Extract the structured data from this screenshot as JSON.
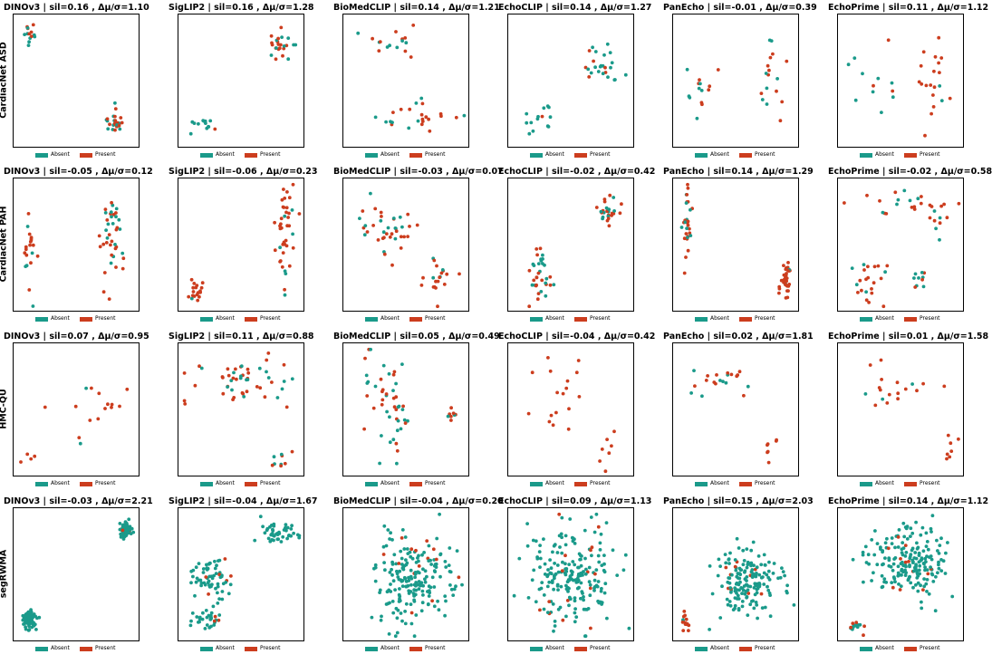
{
  "colors": {
    "absent": "#1a9a8a",
    "present": "#cc3d1e"
  },
  "legend": {
    "absent_label": "Absent",
    "present_label": "Present"
  },
  "models": [
    "DINOv3",
    "SigLIP2",
    "BioMedCLIP",
    "EchoCLIP",
    "PanEcho",
    "EchoPrime"
  ],
  "datasets": [
    "CardiacNet ASD",
    "CardiacNet PAH",
    "HMC-QU",
    "segRWMA"
  ],
  "chart_data": [
    {
      "type": "scatter",
      "row": 0,
      "col": 0,
      "title": "DINOv3 | sil=0.16 , Δμ/σ=1.10",
      "ylabel": "CardiacNet ASD",
      "legend": "bottom",
      "clusters": [
        {
          "cx": 0.11,
          "cy": 0.85,
          "sx": 0.04,
          "sy": 0.06,
          "n": 14,
          "p": 0.3
        },
        {
          "cx": 0.8,
          "cy": 0.18,
          "sx": 0.06,
          "sy": 0.06,
          "n": 26,
          "p": 0.6
        }
      ]
    },
    {
      "type": "scatter",
      "row": 0,
      "col": 1,
      "title": "SigLIP2 | sil=0.16 , Δμ/σ=1.28",
      "legend": "bottom",
      "clusters": [
        {
          "cx": 0.83,
          "cy": 0.78,
          "sx": 0.06,
          "sy": 0.07,
          "n": 24,
          "p": 0.55
        },
        {
          "cx": 0.16,
          "cy": 0.15,
          "sx": 0.06,
          "sy": 0.05,
          "n": 13,
          "p": 0.1
        }
      ]
    },
    {
      "type": "scatter",
      "row": 0,
      "col": 2,
      "title": "BioMedCLIP | sil=0.14 , Δμ/σ=1.21",
      "legend": "bottom",
      "clusters": [
        {
          "cx": 0.35,
          "cy": 0.82,
          "sx": 0.15,
          "sy": 0.08,
          "n": 16,
          "p": 0.45
        },
        {
          "cx": 0.6,
          "cy": 0.22,
          "sx": 0.2,
          "sy": 0.1,
          "n": 24,
          "p": 0.6
        }
      ]
    },
    {
      "type": "scatter",
      "row": 0,
      "col": 3,
      "title": "EchoCLIP | sil=0.14 , Δμ/σ=1.27",
      "legend": "bottom",
      "clusters": [
        {
          "cx": 0.75,
          "cy": 0.63,
          "sx": 0.12,
          "sy": 0.12,
          "n": 25,
          "p": 0.45
        },
        {
          "cx": 0.22,
          "cy": 0.22,
          "sx": 0.1,
          "sy": 0.1,
          "n": 14,
          "p": 0.15
        }
      ]
    },
    {
      "type": "scatter",
      "row": 0,
      "col": 4,
      "title": "PanEcho | sil=-0.01 , Δμ/σ=0.39",
      "legend": "bottom",
      "clusters": [
        {
          "cx": 0.2,
          "cy": 0.45,
          "sx": 0.09,
          "sy": 0.15,
          "n": 14,
          "p": 0.45
        },
        {
          "cx": 0.78,
          "cy": 0.5,
          "sx": 0.07,
          "sy": 0.2,
          "n": 17,
          "p": 0.6
        }
      ]
    },
    {
      "type": "scatter",
      "row": 0,
      "col": 5,
      "title": "EchoPrime | sil=0.11 , Δμ/σ=1.12",
      "legend": "bottom",
      "clusters": [
        {
          "cx": 0.25,
          "cy": 0.45,
          "sx": 0.15,
          "sy": 0.2,
          "n": 12,
          "p": 0.2
        },
        {
          "cx": 0.78,
          "cy": 0.55,
          "sx": 0.1,
          "sy": 0.25,
          "n": 20,
          "p": 0.75
        }
      ]
    },
    {
      "type": "scatter",
      "row": 1,
      "col": 0,
      "title": "DINOv3 | sil=-0.05 , Δμ/σ=0.12",
      "ylabel": "CardiacNet PAH",
      "legend": "bottom",
      "clusters": [
        {
          "cx": 0.1,
          "cy": 0.52,
          "sx": 0.03,
          "sy": 0.17,
          "n": 20,
          "p": 0.85
        },
        {
          "cx": 0.78,
          "cy": 0.55,
          "sx": 0.05,
          "sy": 0.26,
          "n": 40,
          "p": 0.7
        }
      ]
    },
    {
      "type": "scatter",
      "row": 1,
      "col": 1,
      "title": "SigLIP2 | sil=-0.06 , Δμ/σ=0.23",
      "legend": "bottom",
      "clusters": [
        {
          "cx": 0.12,
          "cy": 0.15,
          "sx": 0.04,
          "sy": 0.06,
          "n": 18,
          "p": 0.85
        },
        {
          "cx": 0.85,
          "cy": 0.58,
          "sx": 0.06,
          "sy": 0.22,
          "n": 42,
          "p": 0.75
        }
      ]
    },
    {
      "type": "scatter",
      "row": 1,
      "col": 2,
      "title": "BioMedCLIP | sil=-0.03 , Δμ/σ=0.07",
      "legend": "bottom",
      "clusters": [
        {
          "cx": 0.3,
          "cy": 0.62,
          "sx": 0.14,
          "sy": 0.16,
          "n": 38,
          "p": 0.65
        },
        {
          "cx": 0.78,
          "cy": 0.26,
          "sx": 0.08,
          "sy": 0.1,
          "n": 20,
          "p": 0.7
        }
      ]
    },
    {
      "type": "scatter",
      "row": 1,
      "col": 3,
      "title": "EchoCLIP | sil=-0.02 , Δμ/σ=0.42",
      "legend": "bottom",
      "clusters": [
        {
          "cx": 0.81,
          "cy": 0.78,
          "sx": 0.06,
          "sy": 0.07,
          "n": 26,
          "p": 0.6
        },
        {
          "cx": 0.23,
          "cy": 0.27,
          "sx": 0.09,
          "sy": 0.14,
          "n": 34,
          "p": 0.7
        }
      ]
    },
    {
      "type": "scatter",
      "row": 1,
      "col": 4,
      "title": "PanEcho | sil=0.14 , Δμ/σ=1.29",
      "legend": "bottom",
      "clusters": [
        {
          "cx": 0.09,
          "cy": 0.67,
          "sx": 0.03,
          "sy": 0.19,
          "n": 30,
          "p": 0.7
        },
        {
          "cx": 0.9,
          "cy": 0.18,
          "sx": 0.03,
          "sy": 0.11,
          "n": 34,
          "p": 0.85
        }
      ]
    },
    {
      "type": "scatter",
      "row": 1,
      "col": 5,
      "title": "EchoPrime | sil=-0.02 , Δμ/σ=0.58",
      "legend": "bottom",
      "clusters": [
        {
          "cx": 0.5,
          "cy": 0.85,
          "sx": 0.25,
          "sy": 0.06,
          "n": 22,
          "p": 0.8
        },
        {
          "cx": 0.25,
          "cy": 0.22,
          "sx": 0.12,
          "sy": 0.1,
          "n": 22,
          "p": 0.75
        },
        {
          "cx": 0.8,
          "cy": 0.67,
          "sx": 0.06,
          "sy": 0.08,
          "n": 8,
          "p": 0.5
        },
        {
          "cx": 0.66,
          "cy": 0.25,
          "sx": 0.06,
          "sy": 0.06,
          "n": 10,
          "p": 0.5
        }
      ]
    },
    {
      "type": "scatter",
      "row": 2,
      "col": 0,
      "title": "DINOv3 | sil=0.07 , Δμ/σ=0.95",
      "ylabel": "HMC-QU",
      "legend": "bottom",
      "clusters": [
        {
          "cx": 0.62,
          "cy": 0.55,
          "sx": 0.2,
          "sy": 0.18,
          "n": 15,
          "p": 0.85
        },
        {
          "cx": 0.12,
          "cy": 0.15,
          "sx": 0.06,
          "sy": 0.05,
          "n": 4,
          "p": 0.7
        }
      ]
    },
    {
      "type": "scatter",
      "row": 2,
      "col": 1,
      "title": "SigLIP2 | sil=0.11 , Δμ/σ=0.88",
      "legend": "bottom",
      "clusters": [
        {
          "cx": 0.5,
          "cy": 0.72,
          "sx": 0.25,
          "sy": 0.12,
          "n": 50,
          "p": 0.6
        },
        {
          "cx": 0.8,
          "cy": 0.12,
          "sx": 0.06,
          "sy": 0.05,
          "n": 9,
          "p": 0.55
        }
      ]
    },
    {
      "type": "scatter",
      "row": 2,
      "col": 2,
      "title": "BioMedCLIP | sil=0.05 , Δμ/σ=0.49",
      "legend": "bottom",
      "clusters": [
        {
          "cx": 0.38,
          "cy": 0.55,
          "sx": 0.15,
          "sy": 0.23,
          "n": 48,
          "p": 0.45
        },
        {
          "cx": 0.85,
          "cy": 0.47,
          "sx": 0.04,
          "sy": 0.04,
          "n": 8,
          "p": 0.6
        }
      ]
    },
    {
      "type": "scatter",
      "row": 2,
      "col": 3,
      "title": "EchoCLIP | sil=-0.04 , Δμ/σ=0.42",
      "legend": "bottom",
      "clusters": [
        {
          "cx": 0.38,
          "cy": 0.6,
          "sx": 0.2,
          "sy": 0.22,
          "n": 18,
          "p": 1.0
        },
        {
          "cx": 0.78,
          "cy": 0.2,
          "sx": 0.06,
          "sy": 0.08,
          "n": 6,
          "p": 1.0
        }
      ]
    },
    {
      "type": "scatter",
      "row": 2,
      "col": 4,
      "title": "PanEcho | sil=0.02 , Δμ/σ=1.81",
      "legend": "bottom",
      "clusters": [
        {
          "cx": 0.4,
          "cy": 0.76,
          "sx": 0.2,
          "sy": 0.1,
          "n": 20,
          "p": 0.75
        },
        {
          "cx": 0.8,
          "cy": 0.22,
          "sx": 0.06,
          "sy": 0.1,
          "n": 7,
          "p": 1.0
        }
      ]
    },
    {
      "type": "scatter",
      "row": 2,
      "col": 5,
      "title": "EchoPrime | sil=0.01 , Δμ/σ=1.58",
      "legend": "bottom",
      "clusters": [
        {
          "cx": 0.5,
          "cy": 0.7,
          "sx": 0.25,
          "sy": 0.15,
          "n": 18,
          "p": 0.85
        },
        {
          "cx": 0.9,
          "cy": 0.2,
          "sx": 0.04,
          "sy": 0.09,
          "n": 7,
          "p": 1.0
        }
      ]
    },
    {
      "type": "scatter",
      "row": 3,
      "col": 0,
      "title": "DINOv3 | sil=-0.03 , Δμ/σ=2.21",
      "ylabel": "segRWMA",
      "legend": "bottom",
      "clusters": [
        {
          "cx": 0.9,
          "cy": 0.86,
          "sx": 0.03,
          "sy": 0.04,
          "n": 75,
          "p": 0.06
        },
        {
          "cx": 0.1,
          "cy": 0.15,
          "sx": 0.04,
          "sy": 0.04,
          "n": 75,
          "p": 0.0
        }
      ]
    },
    {
      "type": "scatter",
      "row": 3,
      "col": 1,
      "title": "SigLIP2 | sil=-0.04 , Δμ/σ=1.67",
      "legend": "bottom",
      "clusters": [
        {
          "cx": 0.8,
          "cy": 0.82,
          "sx": 0.09,
          "sy": 0.05,
          "n": 45,
          "p": 0.0
        },
        {
          "cx": 0.25,
          "cy": 0.48,
          "sx": 0.1,
          "sy": 0.1,
          "n": 65,
          "p": 0.06
        },
        {
          "cx": 0.2,
          "cy": 0.14,
          "sx": 0.08,
          "sy": 0.05,
          "n": 30,
          "p": 0.15
        }
      ]
    },
    {
      "type": "scatter",
      "row": 3,
      "col": 2,
      "title": "BioMedCLIP | sil=-0.04 , Δμ/σ=0.20",
      "legend": "bottom",
      "clusters": [
        {
          "cx": 0.55,
          "cy": 0.47,
          "sx": 0.2,
          "sy": 0.22,
          "n": 200,
          "p": 0.06
        }
      ]
    },
    {
      "type": "scatter",
      "row": 3,
      "col": 3,
      "title": "EchoCLIP | sil=0.09 , Δμ/σ=1.13",
      "legend": "bottom",
      "clusters": [
        {
          "cx": 0.5,
          "cy": 0.5,
          "sx": 0.23,
          "sy": 0.23,
          "n": 210,
          "p": 0.05
        }
      ]
    },
    {
      "type": "scatter",
      "row": 3,
      "col": 4,
      "title": "PanEcho | sil=0.15 , Δμ/σ=2.03",
      "legend": "bottom",
      "clusters": [
        {
          "cx": 0.6,
          "cy": 0.45,
          "sx": 0.18,
          "sy": 0.17,
          "n": 170,
          "p": 0.04
        },
        {
          "cx": 0.07,
          "cy": 0.12,
          "sx": 0.02,
          "sy": 0.06,
          "n": 14,
          "p": 0.6
        }
      ]
    },
    {
      "type": "scatter",
      "row": 3,
      "col": 5,
      "title": "EchoPrime | sil=0.14 , Δμ/σ=1.12",
      "legend": "bottom",
      "clusters": [
        {
          "cx": 0.55,
          "cy": 0.6,
          "sx": 0.2,
          "sy": 0.17,
          "n": 200,
          "p": 0.04
        },
        {
          "cx": 0.1,
          "cy": 0.1,
          "sx": 0.04,
          "sy": 0.03,
          "n": 14,
          "p": 0.3
        }
      ]
    }
  ]
}
